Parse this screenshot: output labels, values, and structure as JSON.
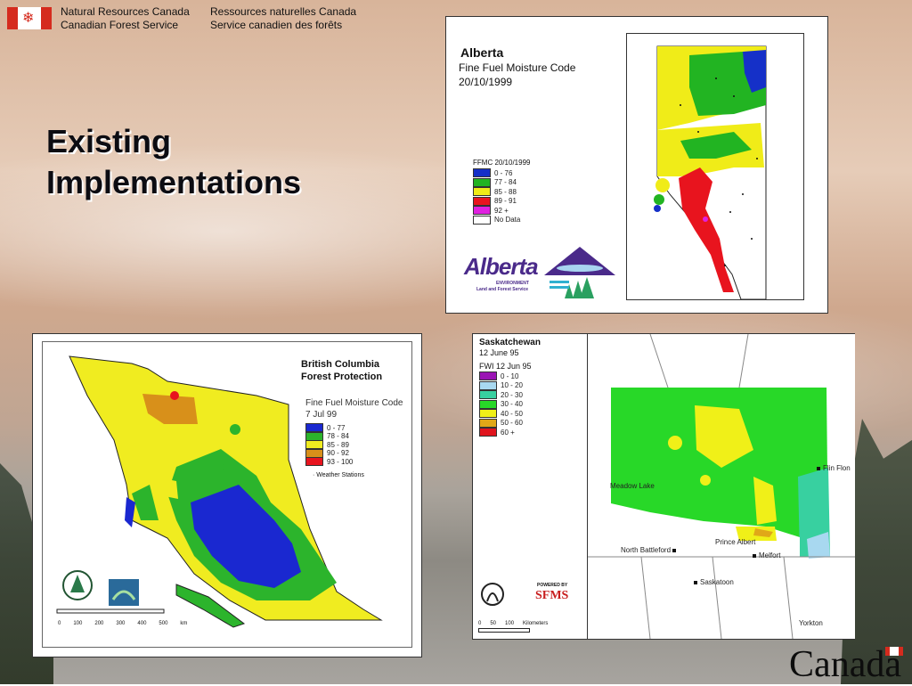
{
  "header": {
    "en_line1": "Natural Resources Canada",
    "en_line2": "Canadian Forest Service",
    "fr_line1": "Ressources naturelles Canada",
    "fr_line2": "Service canadien des forêts"
  },
  "title": {
    "line1": "Existing",
    "line2": "Implementations"
  },
  "alberta": {
    "title": "Alberta",
    "sub1": "Fine Fuel Moisture Code",
    "sub2": "20/10/1999",
    "legend_title": "FFMC 20/10/1999",
    "legend": [
      {
        "label": "0 - 76",
        "color": "#1530c8"
      },
      {
        "label": "77 - 84",
        "color": "#22b422"
      },
      {
        "label": "85 - 88",
        "color": "#f0ec18"
      },
      {
        "label": "89 - 91",
        "color": "#e8141e"
      },
      {
        "label": "92 +",
        "color": "#e020e0"
      },
      {
        "label": "No Data",
        "color": "#ffffff"
      }
    ],
    "logo_name": "Alberta",
    "logo_sub1": "ENVIRONMENT",
    "logo_sub2": "Land and Forest Service"
  },
  "bc": {
    "title1": "British Columbia",
    "title2": "Forest Protection",
    "sub1": "Fine Fuel Moisture Code",
    "sub2": "7 Jul 99",
    "legend": [
      {
        "label": "0 - 77",
        "color": "#1a28d0"
      },
      {
        "label": "78 - 84",
        "color": "#2cb42c"
      },
      {
        "label": "85 - 89",
        "color": "#f0ec20"
      },
      {
        "label": "90 - 92",
        "color": "#d8901a"
      },
      {
        "label": "93 - 100",
        "color": "#e8141e"
      }
    ],
    "stations": "Weather Stations",
    "scale": [
      "0",
      "100",
      "200",
      "300",
      "400",
      "500",
      "km"
    ]
  },
  "sask": {
    "title": "Saskatchewan",
    "date": "12 June 95",
    "legend_title": "FWI 12 Jun 95",
    "legend": [
      {
        "label": "0 - 10",
        "color": "#9a14b4"
      },
      {
        "label": "10 - 20",
        "color": "#a8d8f0"
      },
      {
        "label": "20 - 30",
        "color": "#38d0a0"
      },
      {
        "label": "30 - 40",
        "color": "#28d828"
      },
      {
        "label": "40 - 50",
        "color": "#f0f018"
      },
      {
        "label": "50 - 60",
        "color": "#e0a818"
      },
      {
        "label": "60 +",
        "color": "#e0141e"
      }
    ],
    "cities": {
      "flin_flon": "Flin Flon",
      "meadow_lake": "Meadow Lake",
      "north_battleford": "North Battleford",
      "prince_albert": "Prince Albert",
      "melfort": "Melfort",
      "saskatoon": "Saskatoon",
      "yorkton": "Yorkton"
    },
    "scale": [
      "0",
      "50",
      "100",
      "Kilometers"
    ],
    "logo_powered": "POWERED BY",
    "logo_sfms": "SFMS"
  },
  "wordmark": "Canada"
}
